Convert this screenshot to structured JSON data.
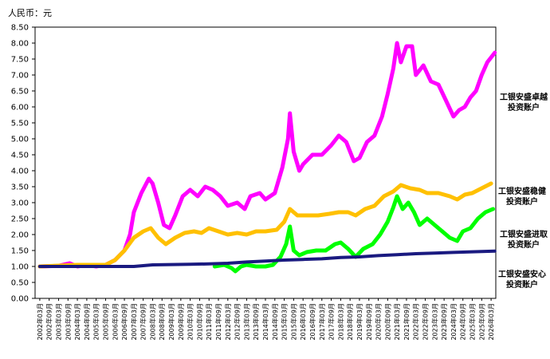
{
  "unit_label": "人民币：元",
  "chart_data": {
    "type": "line",
    "ylim": [
      0,
      8.5
    ],
    "y_ticks": [
      "0.00",
      "0.50",
      "1.00",
      "1.50",
      "2.00",
      "2.50",
      "3.00",
      "3.50",
      "4.00",
      "4.50",
      "5.00",
      "5.50",
      "6.00",
      "6.50",
      "7.00",
      "7.50",
      "8.00",
      "8.50"
    ],
    "x_ticks": [
      "2002年03月",
      "2002年09月",
      "2003年03月",
      "2003年09月",
      "2004年03月",
      "2004年09月",
      "2005年03月",
      "2005年09月",
      "2006年03月",
      "2006年09月",
      "2007年03月",
      "2007年09月",
      "2008年03月",
      "2008年09月",
      "2009年03月",
      "2009年09月",
      "2010年03月",
      "2010年09月",
      "2011年03月",
      "2011年09月",
      "2012年03月",
      "2012年09月",
      "2013年03月",
      "2013年09月",
      "2014年03月",
      "2014年09月",
      "2015年03月",
      "2015年09月",
      "2016年03月",
      "2016年09月",
      "2017年03月",
      "2017年09月",
      "2018年03月",
      "2018年09月",
      "2019年03月",
      "2019年09月",
      "2020年03月",
      "2020年09月",
      "2021年03月",
      "2021年09月",
      "2022年03月",
      "2022年09月",
      "2023年03月",
      "2023年09月",
      "2024年03月",
      "2024年09月",
      "2025年03月",
      "2025年09月",
      "2026年03月"
    ],
    "grid": false,
    "legend_placement": "right",
    "series": [
      {
        "name_lines": [
          "工银安盛卓越",
          "投资账户"
        ],
        "color": "#ff00ff",
        "points": [
          [
            2002.0,
            1.0
          ],
          [
            2003.0,
            1.02
          ],
          [
            2003.6,
            1.1
          ],
          [
            2004.0,
            1.0
          ],
          [
            2004.5,
            1.05
          ],
          [
            2005.0,
            1.0
          ],
          [
            2005.5,
            1.05
          ],
          [
            2006.0,
            1.2
          ],
          [
            2006.5,
            1.5
          ],
          [
            2006.8,
            2.0
          ],
          [
            2007.0,
            2.7
          ],
          [
            2007.4,
            3.3
          ],
          [
            2007.8,
            3.75
          ],
          [
            2008.0,
            3.6
          ],
          [
            2008.3,
            3.0
          ],
          [
            2008.6,
            2.3
          ],
          [
            2008.9,
            2.2
          ],
          [
            2009.2,
            2.6
          ],
          [
            2009.6,
            3.2
          ],
          [
            2010.0,
            3.4
          ],
          [
            2010.4,
            3.2
          ],
          [
            2010.8,
            3.5
          ],
          [
            2011.2,
            3.4
          ],
          [
            2011.6,
            3.2
          ],
          [
            2012.0,
            2.9
          ],
          [
            2012.5,
            3.0
          ],
          [
            2012.9,
            2.8
          ],
          [
            2013.2,
            3.2
          ],
          [
            2013.7,
            3.3
          ],
          [
            2014.0,
            3.1
          ],
          [
            2014.5,
            3.3
          ],
          [
            2014.9,
            4.1
          ],
          [
            2015.2,
            5.0
          ],
          [
            2015.3,
            5.8
          ],
          [
            2015.5,
            4.6
          ],
          [
            2015.8,
            4.0
          ],
          [
            2016.0,
            4.2
          ],
          [
            2016.5,
            4.5
          ],
          [
            2017.0,
            4.5
          ],
          [
            2017.5,
            4.8
          ],
          [
            2017.9,
            5.1
          ],
          [
            2018.3,
            4.9
          ],
          [
            2018.7,
            4.3
          ],
          [
            2019.0,
            4.4
          ],
          [
            2019.4,
            4.9
          ],
          [
            2019.8,
            5.1
          ],
          [
            2020.2,
            5.7
          ],
          [
            2020.5,
            6.4
          ],
          [
            2020.8,
            7.2
          ],
          [
            2021.0,
            8.0
          ],
          [
            2021.2,
            7.4
          ],
          [
            2021.5,
            7.9
          ],
          [
            2021.8,
            7.9
          ],
          [
            2022.0,
            7.0
          ],
          [
            2022.4,
            7.3
          ],
          [
            2022.8,
            6.8
          ],
          [
            2023.2,
            6.7
          ],
          [
            2023.6,
            6.2
          ],
          [
            2024.0,
            5.7
          ],
          [
            2024.3,
            5.9
          ],
          [
            2024.6,
            6.0
          ],
          [
            2024.9,
            6.3
          ],
          [
            2025.2,
            6.5
          ],
          [
            2025.5,
            7.0
          ],
          [
            2025.8,
            7.4
          ],
          [
            2026.2,
            7.7
          ]
        ]
      },
      {
        "name_lines": [
          "工银安盛稳健",
          "投资账户"
        ],
        "color": "#ffc000",
        "points": [
          [
            2002.0,
            1.0
          ],
          [
            2004.0,
            1.05
          ],
          [
            2005.5,
            1.05
          ],
          [
            2006.0,
            1.2
          ],
          [
            2006.5,
            1.5
          ],
          [
            2007.0,
            1.9
          ],
          [
            2007.5,
            2.1
          ],
          [
            2007.9,
            2.2
          ],
          [
            2008.3,
            1.9
          ],
          [
            2008.7,
            1.7
          ],
          [
            2009.2,
            1.9
          ],
          [
            2009.7,
            2.05
          ],
          [
            2010.2,
            2.1
          ],
          [
            2010.6,
            2.05
          ],
          [
            2011.0,
            2.2
          ],
          [
            2011.5,
            2.1
          ],
          [
            2012.0,
            2.0
          ],
          [
            2012.5,
            2.05
          ],
          [
            2013.0,
            2.0
          ],
          [
            2013.5,
            2.1
          ],
          [
            2014.0,
            2.1
          ],
          [
            2014.6,
            2.15
          ],
          [
            2015.0,
            2.4
          ],
          [
            2015.3,
            2.8
          ],
          [
            2015.7,
            2.6
          ],
          [
            2016.2,
            2.6
          ],
          [
            2016.8,
            2.6
          ],
          [
            2017.4,
            2.65
          ],
          [
            2017.9,
            2.7
          ],
          [
            2018.4,
            2.7
          ],
          [
            2018.8,
            2.6
          ],
          [
            2019.3,
            2.8
          ],
          [
            2019.8,
            2.9
          ],
          [
            2020.3,
            3.2
          ],
          [
            2020.8,
            3.35
          ],
          [
            2021.2,
            3.55
          ],
          [
            2021.7,
            3.45
          ],
          [
            2022.2,
            3.4
          ],
          [
            2022.6,
            3.3
          ],
          [
            2023.2,
            3.3
          ],
          [
            2023.8,
            3.2
          ],
          [
            2024.2,
            3.1
          ],
          [
            2024.6,
            3.25
          ],
          [
            2025.0,
            3.3
          ],
          [
            2025.5,
            3.45
          ],
          [
            2026.0,
            3.6
          ]
        ]
      },
      {
        "name_lines": [
          "工银安盛进取",
          "投资账户"
        ],
        "color": "#00ff00",
        "points": [
          [
            2011.3,
            1.0
          ],
          [
            2011.8,
            1.05
          ],
          [
            2012.2,
            0.95
          ],
          [
            2012.4,
            0.85
          ],
          [
            2012.7,
            1.0
          ],
          [
            2013.0,
            1.05
          ],
          [
            2013.5,
            1.0
          ],
          [
            2014.0,
            1.0
          ],
          [
            2014.4,
            1.05
          ],
          [
            2014.8,
            1.3
          ],
          [
            2015.1,
            1.7
          ],
          [
            2015.3,
            2.25
          ],
          [
            2015.5,
            1.5
          ],
          [
            2015.8,
            1.35
          ],
          [
            2016.2,
            1.45
          ],
          [
            2016.7,
            1.5
          ],
          [
            2017.2,
            1.5
          ],
          [
            2017.7,
            1.7
          ],
          [
            2018.0,
            1.75
          ],
          [
            2018.4,
            1.55
          ],
          [
            2018.8,
            1.3
          ],
          [
            2019.2,
            1.55
          ],
          [
            2019.7,
            1.7
          ],
          [
            2020.1,
            2.0
          ],
          [
            2020.5,
            2.4
          ],
          [
            2020.8,
            2.85
          ],
          [
            2021.0,
            3.2
          ],
          [
            2021.3,
            2.8
          ],
          [
            2021.6,
            3.0
          ],
          [
            2021.9,
            2.7
          ],
          [
            2022.2,
            2.3
          ],
          [
            2022.6,
            2.5
          ],
          [
            2023.0,
            2.3
          ],
          [
            2023.4,
            2.1
          ],
          [
            2023.8,
            1.9
          ],
          [
            2024.2,
            1.8
          ],
          [
            2024.5,
            2.1
          ],
          [
            2024.9,
            2.2
          ],
          [
            2025.3,
            2.5
          ],
          [
            2025.7,
            2.7
          ],
          [
            2026.1,
            2.8
          ]
        ]
      },
      {
        "name_lines": [
          "工银安盛安心",
          "投资账户"
        ],
        "color": "#1a1a80",
        "points": [
          [
            2002.0,
            1.0
          ],
          [
            2006.0,
            1.0
          ],
          [
            2007.0,
            1.0
          ],
          [
            2008.0,
            1.05
          ],
          [
            2009.0,
            1.06
          ],
          [
            2010.0,
            1.07
          ],
          [
            2011.0,
            1.08
          ],
          [
            2012.0,
            1.1
          ],
          [
            2013.0,
            1.14
          ],
          [
            2014.0,
            1.17
          ],
          [
            2015.0,
            1.2
          ],
          [
            2016.0,
            1.22
          ],
          [
            2017.0,
            1.24
          ],
          [
            2018.0,
            1.28
          ],
          [
            2019.0,
            1.3
          ],
          [
            2020.0,
            1.34
          ],
          [
            2021.0,
            1.37
          ],
          [
            2022.0,
            1.4
          ],
          [
            2023.0,
            1.42
          ],
          [
            2024.0,
            1.44
          ],
          [
            2025.0,
            1.46
          ],
          [
            2026.2,
            1.48
          ]
        ]
      }
    ]
  }
}
